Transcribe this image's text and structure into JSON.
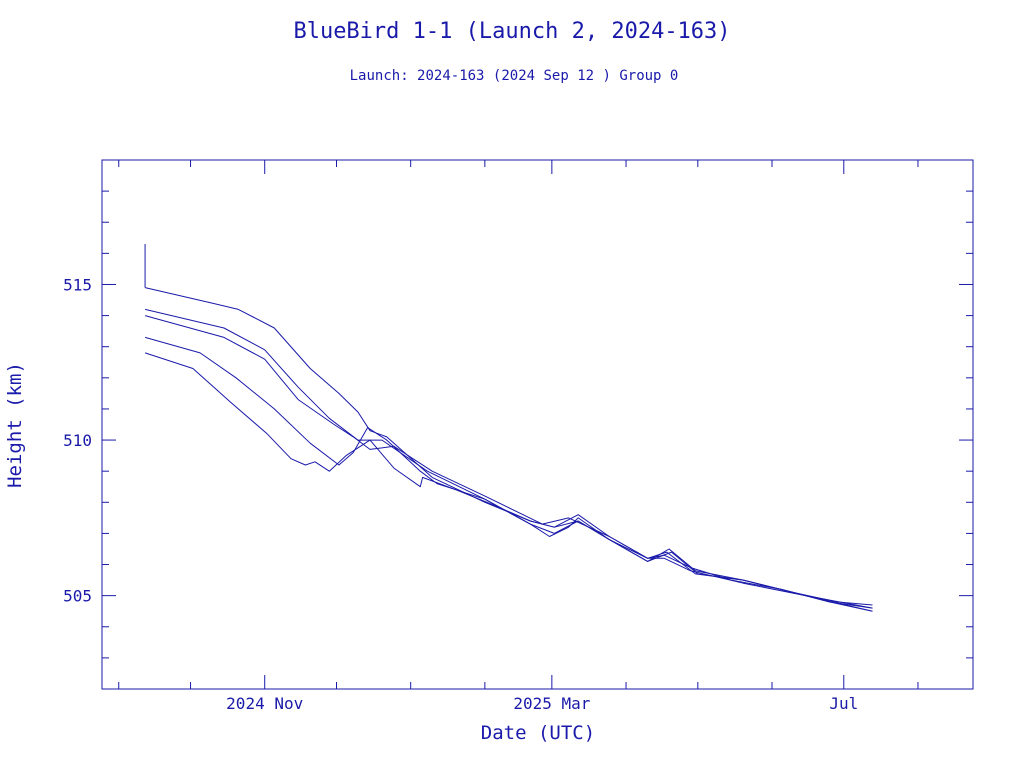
{
  "chart_data": {
    "type": "line",
    "title": "BlueBird 1-1 (Launch 2, 2024-163)",
    "subtitle": "Launch: 2024-163  (2024 Sep 12 )  Group 0",
    "xlabel": "Date (UTC)",
    "ylabel": "Height (km)",
    "xlim": [
      "2024-08-25",
      "2025-08-24"
    ],
    "ylim": [
      502.0,
      519.0
    ],
    "x_ticks": [
      {
        "date": "2024-11-01",
        "label": "2024 Nov"
      },
      {
        "date": "2025-03-01",
        "label": "2025 Mar"
      },
      {
        "date": "2025-07-01",
        "label": "Jul"
      }
    ],
    "y_ticks": [
      {
        "value": 505,
        "label": "505"
      },
      {
        "value": 510,
        "label": "510"
      },
      {
        "value": 515,
        "label": "515"
      }
    ],
    "grid": false,
    "line_color": "#1a1aaa",
    "series": [
      {
        "x": [
          "2024-09-12",
          "2024-10-10",
          "2024-10-21",
          "2024-11-05",
          "2024-11-20",
          "2024-12-02",
          "2024-12-10",
          "2024-12-15",
          "2024-12-22",
          "2025-01-10",
          "2025-02-01",
          "2025-02-20",
          "2025-03-02",
          "2025-03-12",
          "2025-03-25",
          "2025-04-10",
          "2025-04-17",
          "2025-04-28",
          "2025-05-15",
          "2025-06-05",
          "2025-06-25",
          "2025-07-13"
        ],
        "y": [
          514.9,
          514.4,
          514.2,
          513.6,
          512.3,
          511.5,
          510.9,
          510.3,
          510.1,
          508.8,
          508.0,
          507.4,
          507.2,
          507.6,
          506.9,
          506.2,
          506.3,
          505.9,
          505.5,
          505.2,
          504.8,
          504.6
        ]
      },
      {
        "x": [
          "2024-09-12",
          "2024-10-15",
          "2024-11-01",
          "2024-11-15",
          "2024-11-28",
          "2024-12-10",
          "2024-12-20",
          "2025-01-08",
          "2025-02-01",
          "2025-02-20",
          "2025-02-28",
          "2025-03-08",
          "2025-03-12",
          "2025-03-25",
          "2025-04-10",
          "2025-04-19",
          "2025-04-30",
          "2025-05-20",
          "2025-06-10",
          "2025-06-28",
          "2025-07-13"
        ],
        "y": [
          514.2,
          513.6,
          512.9,
          511.7,
          510.7,
          510.0,
          510.0,
          509.0,
          508.1,
          507.3,
          506.9,
          507.2,
          507.5,
          506.8,
          506.1,
          506.5,
          505.8,
          505.5,
          505.1,
          504.8,
          504.7
        ]
      },
      {
        "x": [
          "2024-09-12",
          "2024-10-15",
          "2024-11-01",
          "2024-11-15",
          "2024-11-30",
          "2024-12-08",
          "2024-12-15",
          "2024-12-25",
          "2025-01-10",
          "2025-02-01",
          "2025-02-25",
          "2025-03-08",
          "2025-03-25",
          "2025-04-10",
          "2025-04-17",
          "2025-04-28",
          "2025-05-20",
          "2025-06-15",
          "2025-07-13"
        ],
        "y": [
          514.0,
          513.3,
          512.6,
          511.3,
          510.5,
          510.1,
          509.7,
          509.8,
          509.0,
          508.2,
          507.3,
          507.5,
          506.9,
          506.2,
          506.2,
          505.8,
          505.4,
          505.0,
          504.6
        ]
      },
      {
        "x": [
          "2024-09-12",
          "2024-10-05",
          "2024-10-20",
          "2024-11-05",
          "2024-11-20",
          "2024-12-02",
          "2024-12-08",
          "2024-12-14",
          "2024-12-22",
          "2025-01-05",
          "2025-01-12",
          "2025-01-20",
          "2025-02-01",
          "2025-02-20",
          "2025-03-02",
          "2025-03-12",
          "2025-03-25",
          "2025-04-10",
          "2025-04-20",
          "2025-05-01",
          "2025-05-20",
          "2025-06-10",
          "2025-06-25",
          "2025-07-13"
        ],
        "y": [
          513.3,
          512.8,
          512.0,
          511.0,
          509.9,
          509.2,
          509.6,
          510.4,
          510.0,
          509.0,
          508.6,
          508.4,
          508.1,
          507.3,
          507.0,
          507.4,
          506.8,
          506.1,
          506.4,
          505.7,
          505.5,
          505.1,
          504.8,
          504.5
        ]
      },
      {
        "x": [
          "2024-09-12",
          "2024-10-02",
          "2024-10-18",
          "2024-11-02",
          "2024-11-12",
          "2024-11-18",
          "2024-11-22",
          "2024-11-28",
          "2024-12-05",
          "2024-12-15",
          "2024-12-25",
          "2025-01-05",
          "2025-01-06",
          "2025-01-20",
          "2025-02-05",
          "2025-02-20",
          "2025-03-02",
          "2025-03-12",
          "2025-03-25",
          "2025-04-10",
          "2025-04-18",
          "2025-04-30",
          "2025-05-20",
          "2025-06-15",
          "2025-07-13"
        ],
        "y": [
          512.8,
          512.3,
          511.2,
          510.2,
          509.4,
          509.2,
          509.3,
          509.0,
          509.5,
          510.0,
          509.1,
          508.5,
          508.8,
          508.4,
          507.9,
          507.4,
          507.2,
          507.4,
          506.8,
          506.2,
          506.4,
          505.7,
          505.5,
          505.0,
          504.5
        ]
      }
    ]
  }
}
